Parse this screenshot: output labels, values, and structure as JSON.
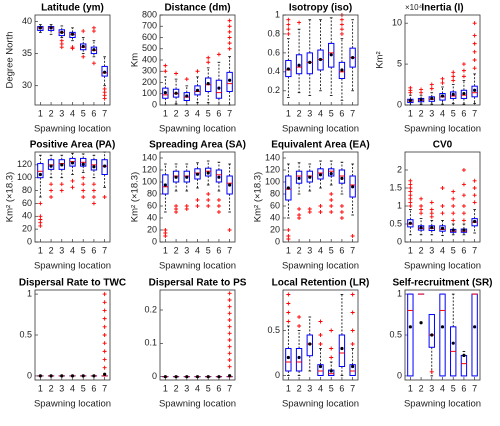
{
  "colors": {
    "box": "#0000ff",
    "median": "#ff0000",
    "whisker": "#000000",
    "mean": "#000000",
    "outlier": "#ff0000"
  },
  "chart_data": [
    {
      "type": "box",
      "title": "Latitude (ym)",
      "ylabel": "Degree North",
      "xlabel": "Spawning location",
      "categories": [
        "1",
        "2",
        "3",
        "4",
        "5",
        "6",
        "7"
      ],
      "ylim": [
        27,
        41
      ],
      "yticks": [
        30,
        35,
        40
      ],
      "stats": {
        "low": [
          38.3,
          38,
          37.5,
          37,
          35,
          34.5,
          30
        ],
        "q1": [
          38.6,
          38.6,
          37.8,
          37.5,
          35.6,
          35,
          31.5
        ],
        "median": [
          39,
          39,
          38.3,
          38,
          36,
          35.5,
          32
        ],
        "q3": [
          39.2,
          39.2,
          38.7,
          38.3,
          36.5,
          36,
          33
        ],
        "high": [
          39.5,
          39.5,
          39.3,
          39,
          37.5,
          37,
          34.5
        ],
        "mean": [
          39,
          39,
          38.3,
          38,
          36.1,
          35.6,
          32.1
        ]
      },
      "outliers": [
        [],
        [],
        [
          37,
          36.5,
          36
        ],
        [
          36,
          35.8
        ],
        [
          34.5,
          38.5
        ],
        [
          33.5,
          38.5,
          39
        ],
        [
          29.5,
          29,
          28.5,
          28
        ]
      ]
    },
    {
      "type": "box",
      "title": "Distance (dm)",
      "ylabel": "Km",
      "xlabel": "Spawning location",
      "categories": [
        "1",
        "2",
        "3",
        "4",
        "5",
        "6",
        "7"
      ],
      "ylim": [
        0,
        800
      ],
      "yticks": [
        0,
        100,
        200,
        300,
        400,
        500,
        600,
        700,
        800
      ],
      "stats": {
        "low": [
          0,
          10,
          0,
          20,
          20,
          0,
          0
        ],
        "q1": [
          60,
          70,
          40,
          90,
          120,
          60,
          120
        ],
        "median": [
          90,
          100,
          70,
          120,
          180,
          110,
          190
        ],
        "q3": [
          150,
          140,
          110,
          170,
          240,
          220,
          290
        ],
        "high": [
          250,
          230,
          170,
          250,
          330,
          380,
          430
        ],
        "mean": [
          110,
          105,
          80,
          130,
          190,
          150,
          220
        ]
      },
      "outliers": [
        [
          300,
          350
        ],
        [
          280
        ],
        [
          230
        ],
        [
          300
        ],
        [
          380,
          420
        ],
        [
          450
        ],
        [
          500,
          550,
          600,
          650,
          700,
          750
        ]
      ]
    },
    {
      "type": "box",
      "title": "Isotropy (iso)",
      "xlabel": "Spawning location",
      "categories": [
        "1",
        "2",
        "3",
        "4",
        "5",
        "6",
        "7"
      ],
      "ylim": [
        0.05,
        1.0
      ],
      "yticks": [
        0.2,
        0.4,
        0.6,
        0.8,
        1
      ],
      "stats": {
        "low": [
          0.13,
          0.18,
          0.15,
          0.2,
          0.15,
          0.1,
          0.2
        ],
        "q1": [
          0.35,
          0.38,
          0.38,
          0.42,
          0.45,
          0.33,
          0.45
        ],
        "median": [
          0.42,
          0.45,
          0.5,
          0.53,
          0.6,
          0.4,
          0.55
        ],
        "q3": [
          0.52,
          0.58,
          0.6,
          0.63,
          0.7,
          0.5,
          0.65
        ],
        "high": [
          0.75,
          0.85,
          0.95,
          0.95,
          0.97,
          0.75,
          0.95
        ],
        "mean": [
          0.43,
          0.47,
          0.5,
          0.53,
          0.58,
          0.42,
          0.55
        ]
      },
      "outliers": [
        [
          0.8,
          0.85,
          0.9,
          0.95
        ],
        [
          0.92
        ],
        [],
        [],
        [],
        [
          0.8,
          0.85,
          0.9,
          0.95,
          1
        ],
        []
      ]
    },
    {
      "type": "box",
      "title": "Inertia (I)",
      "ylabel": "Km²",
      "exponent_label": "×10⁴",
      "xlabel": "Spawning location",
      "categories": [
        "1",
        "2",
        "3",
        "4",
        "5",
        "6",
        "7"
      ],
      "ylim": [
        0,
        11
      ],
      "yticks": [
        0,
        5,
        10
      ],
      "stats": {
        "low": [
          0,
          0.1,
          0.1,
          0.1,
          0.2,
          0.1,
          0.2
        ],
        "q1": [
          0.3,
          0.4,
          0.45,
          0.6,
          0.8,
          0.8,
          1
        ],
        "median": [
          0.5,
          0.6,
          0.7,
          1,
          1.1,
          1.2,
          1.5
        ],
        "q3": [
          0.7,
          0.8,
          1,
          1.4,
          1.6,
          1.8,
          2.3
        ],
        "high": [
          1.2,
          1.2,
          1.5,
          2.2,
          2.5,
          3,
          3.8
        ],
        "mean": [
          0.55,
          0.65,
          0.8,
          1.1,
          1.3,
          1.4,
          1.8
        ]
      },
      "outliers": [
        [
          1.5,
          1.8,
          2.1
        ],
        [
          1.5,
          1.9
        ],
        [
          2,
          2.5
        ],
        [
          2.7,
          3.2
        ],
        [
          3,
          3.5,
          4
        ],
        [
          3.5,
          4.2,
          5
        ],
        [
          4.5,
          5.5,
          6.5,
          7.5,
          8.5,
          10
        ]
      ]
    },
    {
      "type": "box",
      "title": "Positive Area (PA)",
      "ylabel": "Km² (×18.3)",
      "xlabel": "Spawning location",
      "categories": [
        "1",
        "2",
        "3",
        "4",
        "5",
        "6",
        "7"
      ],
      "ylim": [
        0,
        140
      ],
      "yticks": [
        0,
        20,
        40,
        60,
        80,
        100,
        120
      ],
      "stats": {
        "low": [
          70,
          100,
          100,
          105,
          108,
          100,
          85
        ],
        "q1": [
          100,
          113,
          113,
          118,
          118,
          112,
          105
        ],
        "median": [
          110,
          120,
          122,
          125,
          124,
          120,
          118
        ],
        "q3": [
          122,
          128,
          128,
          130,
          130,
          128,
          128
        ],
        "high": [
          135,
          135,
          135,
          138,
          137,
          135,
          140
        ],
        "mean": [
          105,
          118,
          120,
          123,
          121,
          117,
          118
        ]
      },
      "outliers": [
        [
          60,
          40,
          35,
          30,
          25
        ],
        [
          90,
          80,
          70
        ],
        [
          90,
          80
        ],
        [
          95,
          85
        ],
        [
          100,
          90,
          80,
          70
        ],
        [
          90,
          80,
          70,
          60
        ],
        [
          70
        ]
      ]
    },
    {
      "type": "box",
      "title": "Spreading Area (SA)",
      "ylabel": "Km² (×18.3)",
      "xlabel": "Spawning location",
      "categories": [
        "1",
        "2",
        "3",
        "4",
        "5",
        "6",
        "7"
      ],
      "ylim": [
        0,
        150
      ],
      "yticks": [
        0,
        20,
        40,
        60,
        80,
        100,
        120,
        140
      ],
      "stats": {
        "low": [
          50,
          85,
          85,
          90,
          95,
          85,
          50
        ],
        "q1": [
          80,
          100,
          100,
          105,
          110,
          100,
          80
        ],
        "median": [
          92,
          110,
          110,
          115,
          118,
          112,
          98
        ],
        "q3": [
          112,
          118,
          118,
          122,
          123,
          120,
          110
        ],
        "high": [
          130,
          130,
          130,
          132,
          135,
          133,
          130
        ],
        "mean": [
          95,
          108,
          108,
          113,
          115,
          108,
          95
        ]
      },
      "outliers": [
        [
          20,
          15,
          10
        ],
        [
          60,
          55,
          50
        ],
        [
          60,
          55
        ],
        [
          70,
          60
        ],
        [
          80,
          70,
          60
        ],
        [
          70,
          60,
          50
        ],
        [
          20
        ]
      ]
    },
    {
      "type": "box",
      "title": "Equivalent Area (EA)",
      "ylabel": "Km² (×18.3)",
      "xlabel": "Spawning location",
      "categories": [
        "1",
        "2",
        "3",
        "4",
        "5",
        "6",
        "7"
      ],
      "ylim": [
        0,
        150
      ],
      "yticks": [
        0,
        20,
        40,
        60,
        80,
        100,
        120,
        140
      ],
      "stats": {
        "low": [
          40,
          80,
          85,
          90,
          95,
          80,
          45
        ],
        "q1": [
          70,
          98,
          100,
          105,
          110,
          98,
          75
        ],
        "median": [
          88,
          110,
          110,
          115,
          118,
          110,
          95
        ],
        "q3": [
          110,
          118,
          118,
          122,
          122,
          120,
          110
        ],
        "high": [
          130,
          132,
          130,
          135,
          135,
          133,
          130
        ],
        "mean": [
          90,
          106,
          108,
          112,
          114,
          106,
          92
        ]
      },
      "outliers": [
        [
          20,
          10,
          5
        ],
        [
          55,
          45,
          40
        ],
        [
          55,
          50
        ],
        [
          60,
          50
        ],
        [
          80,
          70,
          60,
          50
        ],
        [
          60,
          50,
          40
        ],
        [
          10
        ]
      ]
    },
    {
      "type": "box",
      "title": "CV0",
      "xlabel": "Spawning location",
      "categories": [
        "1",
        "2",
        "3",
        "4",
        "5",
        "6",
        "7"
      ],
      "ylim": [
        0,
        2.5
      ],
      "yticks": [
        0,
        0.5,
        1,
        1.5,
        2
      ],
      "stats": {
        "low": [
          0.2,
          0.2,
          0.2,
          0.18,
          0.2,
          0.2,
          0.25
        ],
        "q1": [
          0.42,
          0.33,
          0.32,
          0.3,
          0.27,
          0.27,
          0.45
        ],
        "median": [
          0.5,
          0.38,
          0.38,
          0.35,
          0.3,
          0.3,
          0.55
        ],
        "q3": [
          0.62,
          0.45,
          0.45,
          0.45,
          0.35,
          0.36,
          0.65
        ],
        "high": [
          0.9,
          0.65,
          0.6,
          0.6,
          0.5,
          0.5,
          0.9
        ],
        "mean": [
          0.52,
          0.4,
          0.4,
          0.38,
          0.33,
          0.33,
          0.57
        ]
      },
      "outliers": [
        [
          1,
          1.1,
          1.2,
          1.3,
          1.4,
          1.5,
          1.6,
          1.7
        ],
        [
          0.8,
          0.9,
          1.0,
          1.2
        ],
        [
          0.7,
          0.8,
          0.9,
          1.1
        ],
        [
          0.8,
          1.0,
          1.5
        ],
        [
          0.6,
          0.8,
          1.0,
          1.2,
          1.4
        ],
        [
          0.6,
          0.8,
          1.0,
          1.3,
          1.6,
          2.0
        ],
        [
          1.1,
          1.3,
          1.5,
          1.7
        ]
      ]
    },
    {
      "type": "box",
      "title": "Dispersal Rate to TWC",
      "xlabel": "Spawning location",
      "categories": [
        "1",
        "2",
        "3",
        "4",
        "5",
        "6",
        "7"
      ],
      "ylim": [
        -0.05,
        1.05
      ],
      "yticks": [
        0,
        0.5,
        1
      ],
      "stats": {
        "low": [
          0,
          0,
          0,
          0,
          0,
          0,
          0
        ],
        "q1": [
          0,
          0,
          0,
          0,
          0,
          0,
          0
        ],
        "median": [
          0,
          0,
          0,
          0,
          0,
          0,
          0
        ],
        "q3": [
          0,
          0,
          0,
          0,
          0,
          0,
          0
        ],
        "high": [
          0,
          0,
          0,
          0,
          0,
          0,
          0
        ],
        "mean": [
          0,
          0,
          0,
          0,
          0,
          0,
          0.02
        ]
      },
      "outliers": [
        [],
        [],
        [],
        [],
        [],
        [],
        [
          0.1,
          0.2,
          0.3,
          0.4,
          0.5,
          0.6,
          0.7,
          0.8,
          0.9,
          1
        ]
      ]
    },
    {
      "type": "box",
      "title": "Dispersal Rate to PS",
      "xlabel": "Spawning location",
      "categories": [
        "1",
        "2",
        "3",
        "4",
        "5",
        "6",
        "7"
      ],
      "ylim": [
        -0.01,
        0.26
      ],
      "yticks": [
        0,
        0.1,
        0.2
      ],
      "stats": {
        "low": [
          0,
          0,
          0,
          0,
          0,
          0,
          0
        ],
        "q1": [
          0,
          0,
          0,
          0,
          0,
          0,
          0
        ],
        "median": [
          0,
          0,
          0,
          0,
          0,
          0,
          0
        ],
        "q3": [
          0,
          0,
          0,
          0,
          0,
          0,
          0
        ],
        "high": [
          0,
          0,
          0,
          0,
          0,
          0,
          0
        ],
        "mean": [
          0,
          0,
          0,
          0,
          0,
          0,
          0.003
        ]
      },
      "outliers": [
        [],
        [],
        [],
        [],
        [],
        [],
        [
          0.03,
          0.05,
          0.07,
          0.09,
          0.11,
          0.13,
          0.15,
          0.17,
          0.19,
          0.21,
          0.23,
          0.25
        ]
      ]
    },
    {
      "type": "box",
      "title": "Local Retention (LR)",
      "xlabel": "Spawning location",
      "categories": [
        "1",
        "2",
        "3",
        "4",
        "5",
        "6",
        "7"
      ],
      "ylim": [
        -0.05,
        0.95
      ],
      "yticks": [
        0,
        0.5
      ],
      "stats": {
        "low": [
          0,
          0,
          0.05,
          0,
          0,
          0,
          0
        ],
        "q1": [
          0.05,
          0.05,
          0.22,
          0,
          0,
          0.1,
          0
        ],
        "median": [
          0.15,
          0.15,
          0.35,
          0.05,
          0.02,
          0.25,
          0.05
        ],
        "q3": [
          0.3,
          0.3,
          0.45,
          0.12,
          0.06,
          0.45,
          0.12
        ],
        "high": [
          0.55,
          0.5,
          0.65,
          0.3,
          0.15,
          0.9,
          0.3
        ],
        "mean": [
          0.2,
          0.2,
          0.35,
          0.1,
          0.05,
          0.3,
          0.1
        ]
      },
      "outliers": [
        [
          0.6,
          0.7,
          0.8,
          0.9
        ],
        [
          0.55,
          0.65
        ],
        [],
        [
          0.35,
          0.45,
          0.6
        ],
        [
          0.2,
          0.3,
          0.5
        ],
        [],
        [
          0.35,
          0.5,
          0.7,
          0.9
        ]
      ]
    },
    {
      "type": "box",
      "title": "Self-recruitment (SR)",
      "xlabel": "Spawning location",
      "categories": [
        "1",
        "2",
        "3",
        "4",
        "5",
        "6",
        "7"
      ],
      "ylim": [
        -0.05,
        1.05
      ],
      "yticks": [
        0,
        0.5,
        1
      ],
      "stats": {
        "low": [
          0,
          1,
          0,
          0,
          0,
          0,
          0
        ],
        "q1": [
          0,
          1,
          0.35,
          0,
          0,
          0,
          0
        ],
        "median": [
          0.8,
          1,
          0.5,
          0.8,
          0.3,
          0.15,
          1
        ],
        "q3": [
          1,
          1,
          0.75,
          1,
          0.6,
          0.25,
          1
        ],
        "high": [
          1,
          1,
          0.75,
          1,
          1,
          0.3,
          1
        ],
        "mean": [
          0.6,
          0.65,
          0.5,
          0.6,
          0.4,
          0.25,
          0.6
        ]
      },
      "outliers": [
        [],
        [],
        [
          0.05
        ],
        [],
        [],
        [],
        []
      ]
    }
  ]
}
